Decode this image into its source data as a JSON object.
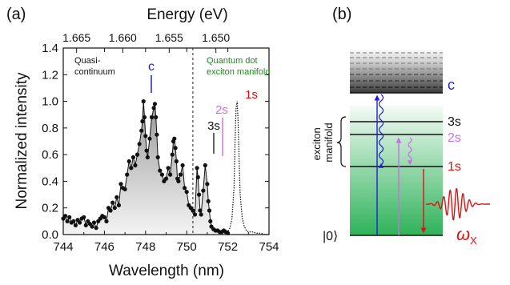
{
  "panel_a": {
    "label": "(a)",
    "top_axis_label": "Energy (eV)",
    "top_ticks": [
      "1.665",
      "1.660",
      "1.655",
      "1.650"
    ],
    "annotation_left": [
      "Quasi-",
      "continuum"
    ],
    "annotation_right": [
      "Quantum dot",
      "exciton manifold"
    ],
    "peak_c": "c",
    "peak_3s": "3s",
    "peak_2s": "2s",
    "peak_1s": "1s"
  },
  "panel_b": {
    "label": "(b)",
    "level_c": "c",
    "level_3s": "3s",
    "level_2s": "2s",
    "level_1s": "1s",
    "ground": "|0⟩",
    "manifold_label": [
      "exciton",
      "manifold"
    ],
    "omega_main": "ω",
    "omega_sub": "X"
  },
  "colors": {
    "c": "#1f1fd0",
    "s2": "#c86ee6",
    "s1": "#e01010",
    "qd_text": "#1e8a1e",
    "manifold_green": "#2fb25a"
  },
  "chart_data": {
    "type": "line",
    "xlabel": "Wavelength (nm)",
    "ylabel": "Normalized intensity",
    "xlim": [
      744,
      754
    ],
    "ylim": [
      0,
      1.4
    ],
    "xticks": [
      744,
      746,
      748,
      750,
      752,
      754
    ],
    "yticks": [
      0.0,
      0.2,
      0.4,
      0.6,
      0.8,
      1.0,
      1.2,
      1.4
    ],
    "secondary_x_axis": {
      "label": "Energy (eV)",
      "ticks": [
        1.665,
        1.66,
        1.655,
        1.65
      ]
    },
    "vertical_divider_x": 750.3,
    "series": [
      {
        "style": "solid line with markers, gray gradient fill",
        "x": [
          744.0,
          744.1,
          744.2,
          744.3,
          744.4,
          744.5,
          744.6,
          744.7,
          744.8,
          744.9,
          745.0,
          745.1,
          745.2,
          745.3,
          745.4,
          745.5,
          745.6,
          745.7,
          745.8,
          745.9,
          746.0,
          746.1,
          746.2,
          746.3,
          746.4,
          746.5,
          746.6,
          746.7,
          746.8,
          746.9,
          747.0,
          747.1,
          747.2,
          747.3,
          747.4,
          747.5,
          747.6,
          747.7,
          747.8,
          747.85,
          747.9,
          747.95,
          748.0,
          748.05,
          748.1,
          748.2,
          748.3,
          748.4,
          748.45,
          748.5,
          748.55,
          748.6,
          748.7,
          748.8,
          748.9,
          749.0,
          749.1,
          749.2,
          749.3,
          749.35,
          749.4,
          749.45,
          749.5,
          749.55,
          749.6,
          749.7,
          749.8,
          749.9,
          750.0,
          750.1,
          750.2,
          750.3,
          750.4,
          750.5,
          750.55,
          750.6,
          750.65,
          750.7,
          750.8,
          750.9,
          751.0,
          751.05,
          751.1,
          751.15,
          751.2,
          751.3,
          751.4,
          751.5,
          751.6,
          751.7,
          751.8,
          751.9,
          752.0
        ],
        "y": [
          0.12,
          0.14,
          0.1,
          0.13,
          0.09,
          0.1,
          0.07,
          0.11,
          0.09,
          0.12,
          0.13,
          0.07,
          0.1,
          0.08,
          0.06,
          0.09,
          0.05,
          0.1,
          0.12,
          0.14,
          0.13,
          0.1,
          0.2,
          0.18,
          0.24,
          0.2,
          0.28,
          0.22,
          0.38,
          0.35,
          0.34,
          0.45,
          0.55,
          0.5,
          0.58,
          0.52,
          0.6,
          0.68,
          0.78,
          0.85,
          1.0,
          0.88,
          0.74,
          0.63,
          0.58,
          0.72,
          0.88,
          0.95,
          0.98,
          0.88,
          0.75,
          0.58,
          0.48,
          0.45,
          0.4,
          0.42,
          0.5,
          0.45,
          0.6,
          0.7,
          0.72,
          0.65,
          0.55,
          0.42,
          0.4,
          0.45,
          0.52,
          0.35,
          0.32,
          0.22,
          0.2,
          0.18,
          0.15,
          0.5,
          0.43,
          0.3,
          0.18,
          0.15,
          0.33,
          0.52,
          0.38,
          0.25,
          0.18,
          0.1,
          0.06,
          0.04,
          0.03,
          0.03,
          0.02,
          0.02,
          0.03,
          0.02,
          0.01
        ]
      },
      {
        "style": "dotted line (1s)",
        "x": [
          751.6,
          751.8,
          752.0,
          752.1,
          752.2,
          752.3,
          752.35,
          752.4,
          752.45,
          752.5,
          752.55,
          752.6,
          752.7,
          752.8,
          752.9,
          753.0,
          753.2,
          753.4,
          753.6,
          753.8,
          754.0
        ],
        "y": [
          0.0,
          0.01,
          0.02,
          0.05,
          0.12,
          0.35,
          0.7,
          0.95,
          1.0,
          0.85,
          0.55,
          0.3,
          0.12,
          0.06,
          0.03,
          0.02,
          0.02,
          0.01,
          0.01,
          0.0,
          0.0
        ]
      }
    ]
  }
}
